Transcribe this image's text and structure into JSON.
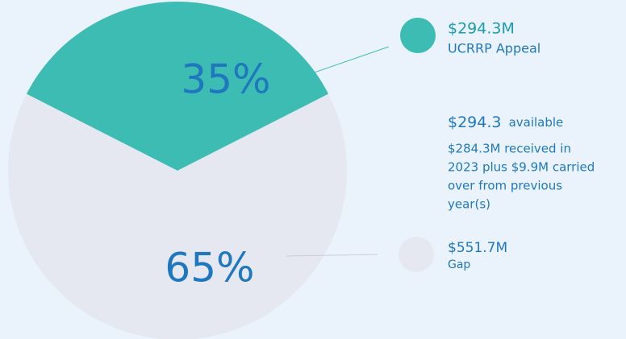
{
  "chart_data": {
    "type": "pie",
    "categories": [
      "UCRRP Appeal",
      "Gap"
    ],
    "values": [
      35,
      65
    ],
    "value_labels": [
      "35%",
      "65%"
    ],
    "amount_labels": [
      "$294.3M",
      "$551.7M"
    ],
    "colors": [
      "#3dbcb4",
      "#e5e8f0"
    ],
    "annotation": {
      "amount": "$294.3",
      "text": "available",
      "lines": [
        "$284.3M received in",
        "2023 plus $9.9M carried",
        "over from previous",
        "year(s)"
      ]
    }
  }
}
